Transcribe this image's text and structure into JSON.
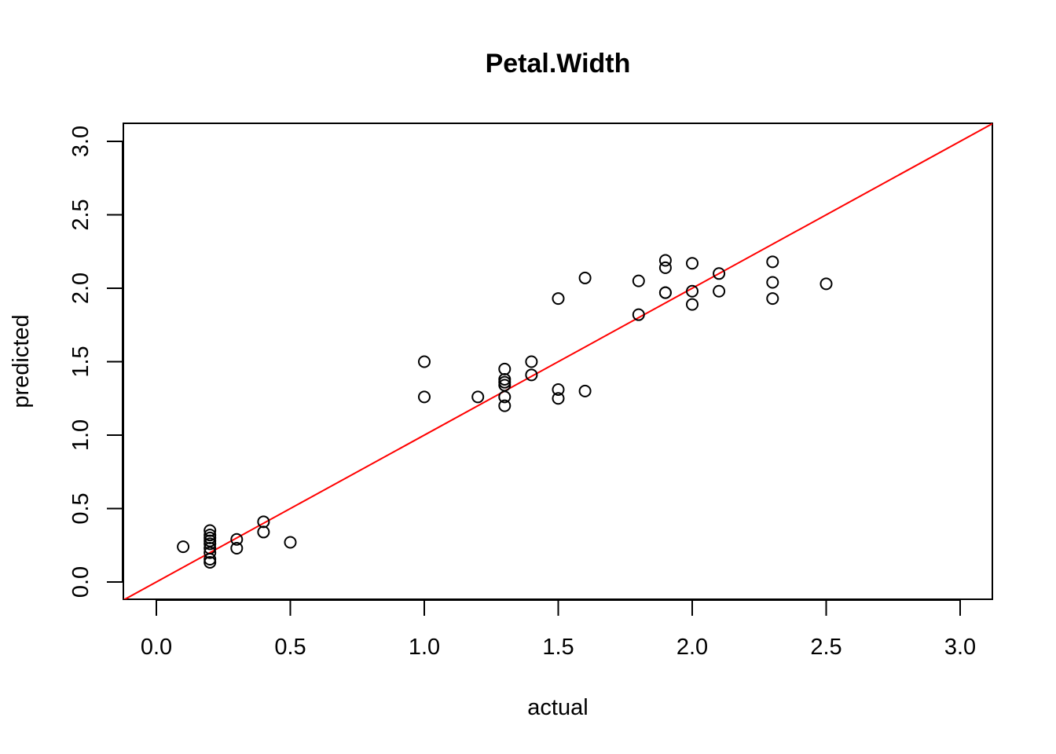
{
  "chart_data": {
    "type": "scatter",
    "title": "Petal.Width",
    "xlabel": "actual",
    "ylabel": "predicted",
    "xlim": [
      -0.12,
      3.12
    ],
    "ylim": [
      -0.12,
      3.12
    ],
    "xticks": [
      "0.0",
      "0.5",
      "1.0",
      "1.5",
      "2.0",
      "2.5",
      "3.0"
    ],
    "yticks": [
      "0.0",
      "0.5",
      "1.0",
      "1.5",
      "2.0",
      "2.5",
      "3.0"
    ],
    "grid": false,
    "reference_line": {
      "intercept": 0,
      "slope": 1,
      "color": "#ff0000"
    },
    "point_color": "#000000",
    "points": [
      [
        0.1,
        0.24
      ],
      [
        0.2,
        0.35
      ],
      [
        0.2,
        0.32
      ],
      [
        0.2,
        0.3
      ],
      [
        0.2,
        0.28
      ],
      [
        0.2,
        0.26
      ],
      [
        0.2,
        0.23
      ],
      [
        0.2,
        0.2
      ],
      [
        0.2,
        0.155
      ],
      [
        0.2,
        0.134
      ],
      [
        0.3,
        0.29
      ],
      [
        0.3,
        0.23
      ],
      [
        0.4,
        0.41
      ],
      [
        0.4,
        0.34
      ],
      [
        0.5,
        0.27
      ],
      [
        1.0,
        1.5
      ],
      [
        1.0,
        1.26
      ],
      [
        1.2,
        1.26
      ],
      [
        1.3,
        1.45
      ],
      [
        1.3,
        1.38
      ],
      [
        1.3,
        1.36
      ],
      [
        1.3,
        1.34
      ],
      [
        1.3,
        1.26
      ],
      [
        1.3,
        1.2
      ],
      [
        1.4,
        1.5
      ],
      [
        1.4,
        1.41
      ],
      [
        1.5,
        1.31
      ],
      [
        1.5,
        1.25
      ],
      [
        1.5,
        1.93
      ],
      [
        1.6,
        1.3
      ],
      [
        1.6,
        2.07
      ],
      [
        1.8,
        2.05
      ],
      [
        1.8,
        1.82
      ],
      [
        1.9,
        2.19
      ],
      [
        1.9,
        2.14
      ],
      [
        1.9,
        1.97
      ],
      [
        1.9,
        1.97
      ],
      [
        2.0,
        2.17
      ],
      [
        2.0,
        1.98
      ],
      [
        2.0,
        1.89
      ],
      [
        2.1,
        2.1
      ],
      [
        2.1,
        1.98
      ],
      [
        2.3,
        2.18
      ],
      [
        2.3,
        2.04
      ],
      [
        2.3,
        1.93
      ],
      [
        2.5,
        2.03
      ]
    ]
  }
}
